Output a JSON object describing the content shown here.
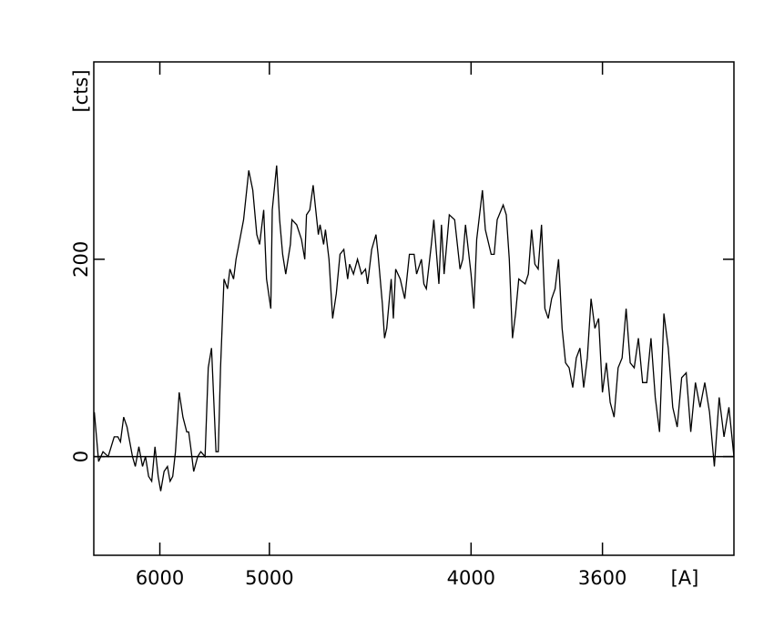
{
  "chart_data": {
    "type": "line",
    "xscale": "inverse-square",
    "color": "#000000",
    "x_label": "[A]",
    "y_label": "[cts]",
    "xlim": [
      7000,
      3300
    ],
    "ylim": [
      -100,
      400
    ],
    "xticks": [
      6000,
      5000,
      4000,
      3600
    ],
    "yticks": [
      0,
      200
    ],
    "zero_line": true,
    "x": [
      6990,
      6910,
      6830,
      6740,
      6640,
      6580,
      6540,
      6490,
      6440,
      6360,
      6320,
      6270,
      6220,
      6180,
      6140,
      6100,
      6060,
      6020,
      5990,
      5950,
      5910,
      5880,
      5850,
      5820,
      5780,
      5740,
      5700,
      5680,
      5660,
      5630,
      5590,
      5560,
      5520,
      5490,
      5460,
      5420,
      5400,
      5380,
      5350,
      5320,
      5300,
      5270,
      5250,
      5220,
      5190,
      5150,
      5120,
      5090,
      5070,
      5040,
      5020,
      4990,
      4980,
      4950,
      4930,
      4910,
      4890,
      4860,
      4850,
      4820,
      4790,
      4770,
      4760,
      4740,
      4720,
      4690,
      4680,
      4660,
      4650,
      4630,
      4610,
      4590,
      4570,
      4550,
      4530,
      4520,
      4500,
      4480,
      4460,
      4440,
      4430,
      4410,
      4390,
      4380,
      4360,
      4350,
      4340,
      4320,
      4310,
      4300,
      4280,
      4260,
      4240,
      4220,
      4210,
      4190,
      4180,
      4170,
      4150,
      4140,
      4120,
      4110,
      4100,
      4080,
      4060,
      4040,
      4030,
      4020,
      4000,
      3990,
      3980,
      3960,
      3950,
      3930,
      3920,
      3910,
      3890,
      3880,
      3870,
      3860,
      3850,
      3840,
      3820,
      3810,
      3800,
      3790,
      3780,
      3770,
      3760,
      3750,
      3740,
      3730,
      3720,
      3710,
      3700,
      3690,
      3680,
      3670,
      3660,
      3650,
      3640,
      3630,
      3620,
      3610,
      3600,
      3590,
      3580,
      3570,
      3560,
      3550,
      3540,
      3530,
      3520,
      3510,
      3500,
      3490,
      3480,
      3470,
      3460,
      3450,
      3440,
      3430,
      3420,
      3410,
      3400,
      3390,
      3380,
      3370,
      3360,
      3350,
      3340,
      3330,
      3320,
      3310,
      3300
    ],
    "values": [
      45,
      -5,
      5,
      0,
      20,
      20,
      15,
      40,
      30,
      0,
      -10,
      10,
      -10,
      0,
      -20,
      -25,
      10,
      -20,
      -35,
      -15,
      -10,
      -25,
      -20,
      5,
      65,
      40,
      25,
      25,
      10,
      -15,
      0,
      5,
      0,
      90,
      110,
      5,
      5,
      90,
      180,
      170,
      190,
      180,
      200,
      220,
      240,
      290,
      270,
      225,
      215,
      250,
      180,
      150,
      250,
      295,
      240,
      205,
      185,
      215,
      240,
      235,
      220,
      200,
      245,
      250,
      275,
      225,
      235,
      215,
      230,
      200,
      140,
      165,
      205,
      210,
      180,
      195,
      185,
      200,
      185,
      190,
      175,
      210,
      225,
      205,
      155,
      120,
      130,
      180,
      140,
      190,
      180,
      160,
      205,
      205,
      185,
      200,
      175,
      170,
      215,
      240,
      175,
      235,
      185,
      245,
      240,
      190,
      200,
      235,
      185,
      150,
      220,
      270,
      230,
      205,
      205,
      240,
      255,
      245,
      200,
      120,
      145,
      180,
      175,
      185,
      230,
      195,
      190,
      235,
      150,
      140,
      160,
      170,
      200,
      130,
      95,
      90,
      70,
      100,
      110,
      70,
      100,
      160,
      130,
      140,
      65,
      95,
      55,
      40,
      90,
      100,
      150,
      95,
      90,
      120,
      75,
      75,
      120,
      60,
      25,
      145,
      110,
      50,
      30,
      80,
      85,
      25,
      75,
      50,
      75,
      45,
      -10,
      60,
      20,
      50,
      0
    ]
  }
}
